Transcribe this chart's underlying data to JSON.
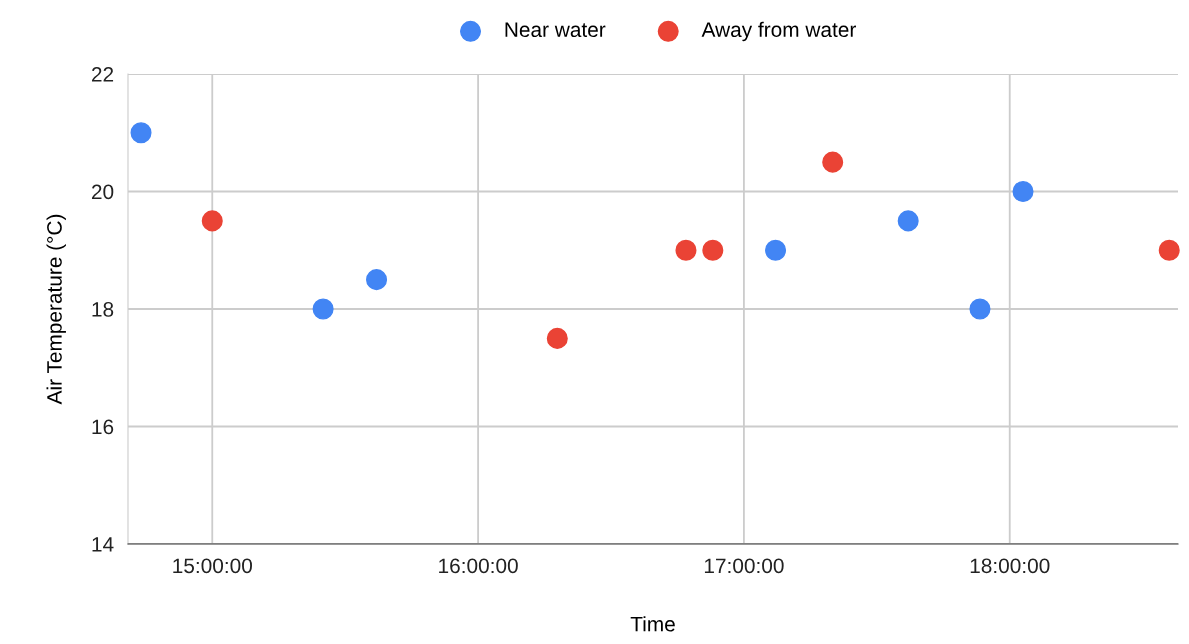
{
  "chart_data": {
    "type": "scatter",
    "xlabel": "Time",
    "ylabel": "Air Temperature (°C)",
    "xlim": [
      14.683,
      18.633
    ],
    "ylim": [
      14,
      22
    ],
    "xticks": [
      {
        "value": 15,
        "label": "15:00:00"
      },
      {
        "value": 16,
        "label": "16:00:00"
      },
      {
        "value": 17,
        "label": "17:00:00"
      },
      {
        "value": 18,
        "label": "18:00:00"
      }
    ],
    "yticks": [
      14,
      16,
      18,
      20,
      22
    ],
    "grid": true,
    "legend": "top",
    "marker": "circle",
    "series": [
      {
        "name": "Near water",
        "color": "#4285f4",
        "x": [
          14.732,
          15.417,
          15.618,
          17.119,
          17.618,
          17.888,
          18.05
        ],
        "values": [
          21,
          18,
          18.5,
          19,
          19.5,
          18,
          20
        ]
      },
      {
        "name": "Away from water",
        "color": "#ea4335",
        "x": [
          15.0,
          16.298,
          16.782,
          16.883,
          17.334,
          18.6
        ],
        "values": [
          19.5,
          17.5,
          19,
          19,
          20.5,
          19
        ]
      }
    ]
  }
}
